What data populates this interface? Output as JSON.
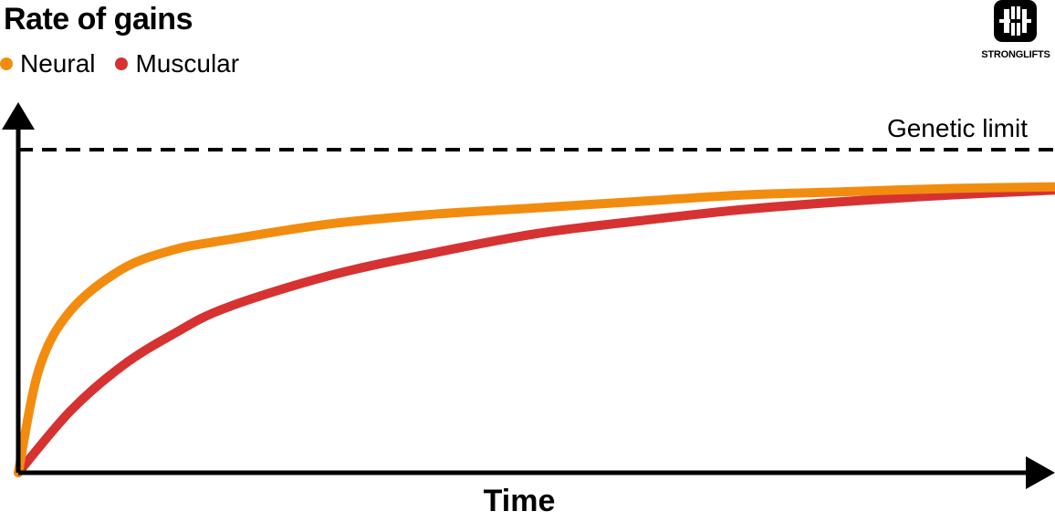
{
  "chart_data": {
    "type": "line",
    "title": "Rate of gains",
    "xlabel": "Time",
    "ylabel": "",
    "xlim": [
      0,
      100
    ],
    "ylim": [
      0,
      100
    ],
    "grid": false,
    "legend_placement": "top-left",
    "annotations": [
      {
        "type": "hline",
        "label": "Genetic limit",
        "y": 100,
        "style": "dashed",
        "color": "#000000"
      }
    ],
    "series": [
      {
        "name": "Neural",
        "color": "#F28C0F",
        "x": [
          0,
          2,
          5,
          10,
          15,
          20,
          30,
          40,
          50,
          60,
          70,
          80,
          90,
          100
        ],
        "y": [
          0,
          32,
          50,
          63,
          69,
          72,
          77,
          80,
          82,
          84,
          86,
          87,
          88,
          88.5
        ]
      },
      {
        "name": "Muscular",
        "color": "#D63232",
        "x": [
          0,
          5,
          10,
          15,
          20,
          30,
          40,
          50,
          60,
          70,
          80,
          90,
          100
        ],
        "y": [
          0,
          19,
          33,
          43,
          51,
          61,
          68,
          74,
          78,
          81.5,
          84,
          86,
          87.5
        ]
      }
    ]
  },
  "brand": {
    "logo_name": "stronglifts-barbell-logo",
    "logo_text": "STRONGLIFTS"
  },
  "colors": {
    "axis": "#000000",
    "neural": "#F28C0F",
    "muscular": "#D63232"
  }
}
